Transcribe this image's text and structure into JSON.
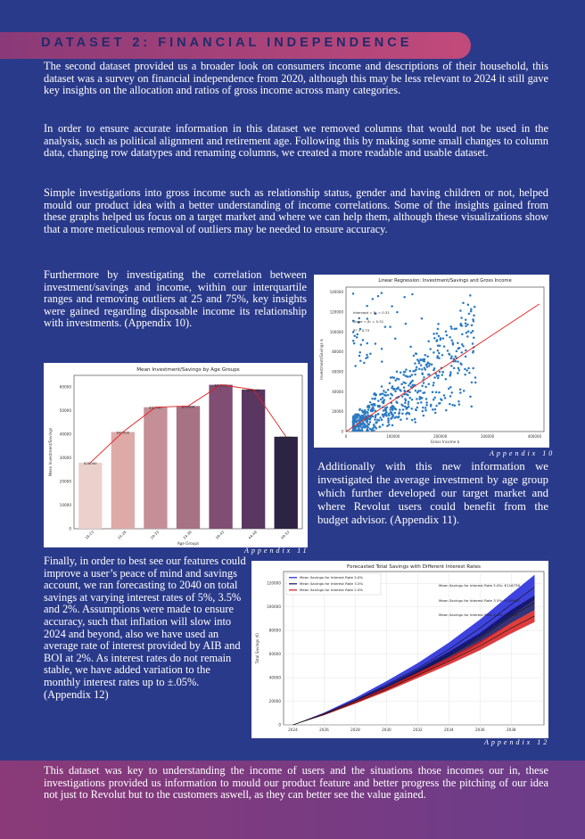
{
  "section_title": "DATASET 2: FINANCIAL INDEPENDENCE",
  "paragraphs": {
    "p1": "The second dataset provided us a broader look on consumers income and descriptions of their household, this dataset was a survey on financial independence from 2020, although this may be less relevant to 2024 it still gave key insights on the allocation and ratios of gross income across many categories.",
    "p2": "In order to ensure accurate information in this dataset we removed columns that would not be used in the analysis, such as political alignment and retirement age. Following this by making some small changes to column data, changing row datatypes and renaming columns, we created a more readable and usable dataset.",
    "p3": "Simple investigations into gross income such as relationship status, gender and having children or not, helped mould our product idea with a better understanding of income correlations. Some of the insights gained from these graphs helped us focus on a target market and where we can help them, although these visualizations show that a more meticulous removal of outliers may be needed to ensure accuracy.",
    "p4": "Furthermore by investigating the correlation between investment/savings and income, within our interquartile ranges and removing outliers at 25 and 75%, key insights were gained regarding disposable income its relationship with investments. (Appendix 10).",
    "p5": "Additionally with this new information we investigated the average investment by age group which further developed our target market and where Revolut users could benefit from the budget advisor. (Appendix 11).",
    "p6": "Finally, in order to best see our features could improve a user’s peace of mind and savings account, we ran forecasting to 2040 on total savings at varying interest rates of 5%, 3.5% and 2%. Assumptions were made to ensure accuracy, such that inflation will slow into 2024 and beyond, also we have used an average rate of interest provided by AIB and BOI at 2%. As interest rates do not remain stable, we have added variation to the monthly interest rates up to ±.05%. (Appendix 12)",
    "p7": "This dataset was key to understanding the income of users and the situations those incomes our in, these investigations provided us information to mould our product feature and better progress the pitching of our idea not just to Revolut but to the customers aswell, as they can better see the value gained."
  },
  "captions": {
    "appendix10": "Appendix 10",
    "appendix11": "Appendix 11",
    "appendix12": "Appendix 12"
  },
  "chart_data": [
    {
      "type": "scatter",
      "title": "Linear Regression: Investment/Savings and Gross Income",
      "xlabel": "Gross Income $",
      "ylabel": "Investment/Savings $",
      "xlim": [
        0,
        420000
      ],
      "ylim": [
        0,
        145000
      ],
      "xticks": [
        "0",
        "100000",
        "200000",
        "300000",
        "400000"
      ],
      "yticks": [
        "0",
        "20000",
        "40000",
        "60000",
        "80000",
        "100000",
        "120000",
        "140000"
      ],
      "annotations": [
        "Intercept = β₀ = 0.31",
        "Slope = β₁ = 0.31",
        "R² = 0.73"
      ],
      "regression_line": {
        "x": [
          0,
          410000
        ],
        "y": [
          0,
          128000
        ]
      },
      "points_cloud": "approx. 800 points concentrated at gross income 20000–200000, investment 0–80000"
    },
    {
      "type": "bar",
      "title": "Mean Investment/Savings by Age Groups",
      "xlabel": "Age Groups",
      "ylabel": "Mean Investment/Savings",
      "ylim": [
        0,
        65000
      ],
      "yticks": [
        "0",
        "10000",
        "20000",
        "30000",
        "40000",
        "50000",
        "60000"
      ],
      "categories": [
        "18-23",
        "24-28",
        "29-33",
        "34-38",
        "39-43",
        "44-48",
        "49-53"
      ],
      "values": [
        28000,
        41000,
        51500,
        52000,
        61000,
        59000,
        39000
      ],
      "value_labels": [
        "$28000",
        "$41000",
        "$51500",
        "$52000",
        "$61000",
        "$59000",
        "$39000"
      ],
      "colors": [
        "#ebd0cc",
        "#ddaaa8",
        "#c58f97",
        "#a77284",
        "#7f4e72",
        "#5a3760",
        "#2d2343"
      ]
    },
    {
      "type": "line",
      "title": "Forecasted Total Savings with Different Interest Rates",
      "ylabel": "Total Savings (€)",
      "xlim": [
        2024,
        2039.5
      ],
      "ylim": [
        0,
        130000
      ],
      "xticks": [
        "2024",
        "2026",
        "2028",
        "2030",
        "2032",
        "2034",
        "2036",
        "2038"
      ],
      "yticks": [
        "0",
        "20000",
        "40000",
        "60000",
        "80000",
        "100000",
        "120000"
      ],
      "legend": [
        "Mean Savings for Interest Rate 5.0%",
        "Mean Savings for Interest Rate 3.5%",
        "Mean Savings for Interest Rate 2.0%"
      ],
      "annotations": [
        "Mean Savings for Interest Rate 5.0%: €116738",
        "Mean Savings for Interest Rate 3.5%: €103521",
        "Mean Savings for Interest Rate 2.0%: €92253"
      ],
      "series": [
        {
          "name": "Mean Savings for Interest Rate 5.0%",
          "color": "#1b22d8",
          "x": [
            2024,
            2026,
            2028,
            2030,
            2032,
            2034,
            2036,
            2038,
            2039.5
          ],
          "values": [
            0,
            9500,
            21000,
            34000,
            48000,
            64000,
            82000,
            102000,
            116738
          ]
        },
        {
          "name": "Mean Savings for Interest Rate 3.5%",
          "color": "#101060",
          "x": [
            2024,
            2026,
            2028,
            2030,
            2032,
            2034,
            2036,
            2038,
            2039.5
          ],
          "values": [
            0,
            9000,
            20000,
            31500,
            44500,
            58500,
            73500,
            92000,
            103521
          ]
        },
        {
          "name": "Mean Savings for Interest Rate 2.0%",
          "color": "#d81b1b",
          "x": [
            2024,
            2026,
            2028,
            2030,
            2032,
            2034,
            2036,
            2038,
            2039.5
          ],
          "values": [
            0,
            8700,
            19000,
            30000,
            42000,
            54000,
            67000,
            82000,
            92253
          ]
        }
      ]
    }
  ]
}
